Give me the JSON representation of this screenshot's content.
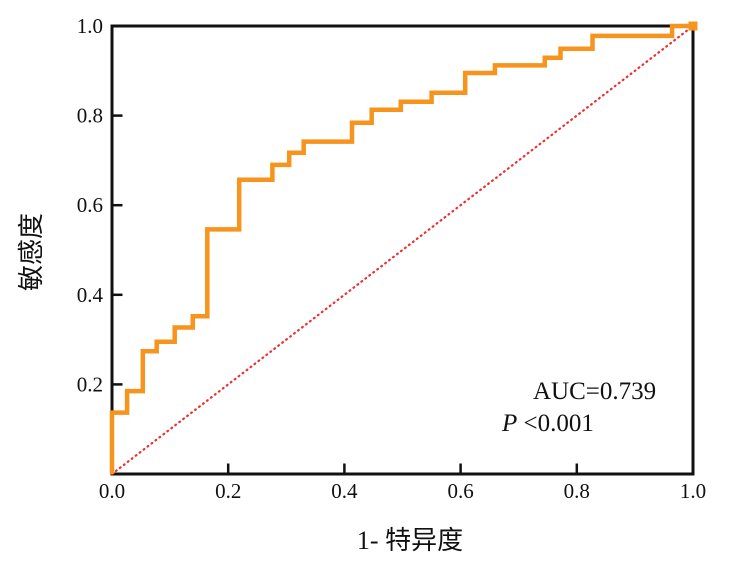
{
  "figure": {
    "x_axis_title": "1- 特异度",
    "y_axis_title": "敏感度",
    "annotation": {
      "auc_text": "AUC=0.739",
      "p_italic": "P",
      "p_rest": " <0.001"
    }
  },
  "colors": {
    "roc_curve": "#F7941D",
    "reference_line": "#F02D2D",
    "axis": "#111111",
    "text": "#111111",
    "background": "#FFFFFF"
  },
  "chart_data": {
    "type": "line",
    "subtype": "roc-curve",
    "title": "",
    "xlabel": "1- 特异度",
    "ylabel": "敏感度",
    "xlim": [
      0.0,
      1.0
    ],
    "ylim": [
      0.0,
      1.0
    ],
    "grid": false,
    "legend": "none",
    "x_ticks": [
      {
        "value": 0.0,
        "label": "0.0"
      },
      {
        "value": 0.2,
        "label": "0.2"
      },
      {
        "value": 0.4,
        "label": "0.4"
      },
      {
        "value": 0.6,
        "label": "0.6"
      },
      {
        "value": 0.8,
        "label": "0.8"
      },
      {
        "value": 1.0,
        "label": "1.0"
      }
    ],
    "y_ticks": [
      {
        "value": 0.2,
        "label": "0.2"
      },
      {
        "value": 0.4,
        "label": "0.4"
      },
      {
        "value": 0.6,
        "label": "0.6"
      },
      {
        "value": 0.8,
        "label": "0.8"
      },
      {
        "value": 1.0,
        "label": "1.0"
      }
    ],
    "auc": 0.739,
    "p_value": "<0.001",
    "series": [
      {
        "name": "ROC curve",
        "style": "solid-step",
        "color": "#F7941D",
        "points": [
          [
            0.0,
            0.0
          ],
          [
            0.0,
            0.137
          ],
          [
            0.026,
            0.137
          ],
          [
            0.026,
            0.185
          ],
          [
            0.053,
            0.185
          ],
          [
            0.053,
            0.274
          ],
          [
            0.077,
            0.274
          ],
          [
            0.077,
            0.295
          ],
          [
            0.108,
            0.295
          ],
          [
            0.108,
            0.327
          ],
          [
            0.139,
            0.327
          ],
          [
            0.139,
            0.352
          ],
          [
            0.164,
            0.352
          ],
          [
            0.164,
            0.546
          ],
          [
            0.219,
            0.546
          ],
          [
            0.219,
            0.657
          ],
          [
            0.276,
            0.657
          ],
          [
            0.276,
            0.69
          ],
          [
            0.305,
            0.69
          ],
          [
            0.305,
            0.717
          ],
          [
            0.33,
            0.717
          ],
          [
            0.33,
            0.742
          ],
          [
            0.413,
            0.742
          ],
          [
            0.413,
            0.784
          ],
          [
            0.447,
            0.784
          ],
          [
            0.447,
            0.813
          ],
          [
            0.497,
            0.813
          ],
          [
            0.497,
            0.831
          ],
          [
            0.55,
            0.831
          ],
          [
            0.55,
            0.851
          ],
          [
            0.608,
            0.851
          ],
          [
            0.608,
            0.895
          ],
          [
            0.659,
            0.895
          ],
          [
            0.659,
            0.912
          ],
          [
            0.745,
            0.912
          ],
          [
            0.745,
            0.929
          ],
          [
            0.772,
            0.929
          ],
          [
            0.772,
            0.949
          ],
          [
            0.827,
            0.949
          ],
          [
            0.827,
            0.978
          ],
          [
            0.964,
            0.978
          ],
          [
            0.964,
            1.0
          ],
          [
            1.0,
            1.0
          ]
        ]
      },
      {
        "name": "reference diagonal",
        "style": "dotted",
        "color": "#F02D2D",
        "points": [
          [
            0.0,
            0.0
          ],
          [
            1.0,
            1.0
          ]
        ]
      }
    ],
    "annotations": [
      "AUC=0.739",
      "P <0.001"
    ]
  }
}
